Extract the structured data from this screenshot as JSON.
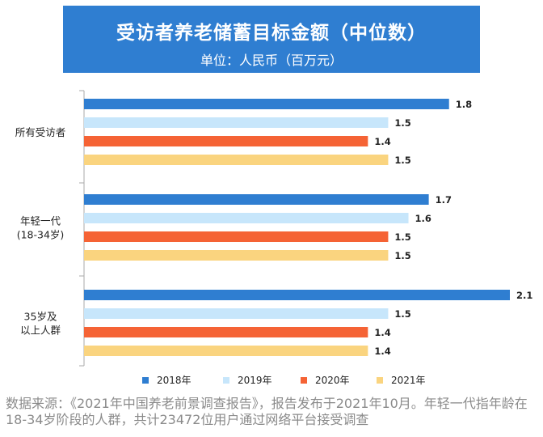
{
  "header": {
    "title": "受访者养老储蓄目标金额（中位数）",
    "subtitle": "单位：人民币（百万元）"
  },
  "chart_data": {
    "type": "bar",
    "orientation": "horizontal",
    "title": "受访者养老储蓄目标金额（中位数）",
    "subtitle": "单位：人民币（百万元）",
    "categories": [
      [
        "所有受访者"
      ],
      [
        "年轻一代",
        "(18-34岁)"
      ],
      [
        "35岁及",
        "以上人群"
      ]
    ],
    "series": [
      {
        "name": "2018年",
        "color": "#2f7ed1",
        "values": [
          1.8,
          1.7,
          2.1
        ]
      },
      {
        "name": "2019年",
        "color": "#c7e6fb",
        "values": [
          1.5,
          1.6,
          1.5
        ]
      },
      {
        "name": "2020年",
        "color": "#f56335",
        "values": [
          1.4,
          1.5,
          1.4
        ]
      },
      {
        "name": "2021年",
        "color": "#fad47f",
        "values": [
          1.5,
          1.5,
          1.4
        ]
      }
    ],
    "value_labels": [
      [
        "1.8",
        "1.5",
        "1.4",
        "1.5"
      ],
      [
        "1.7",
        "1.6",
        "1.5",
        "1.5"
      ],
      [
        "2.1",
        "1.5",
        "1.4",
        "1.4"
      ]
    ],
    "xlim": [
      0,
      2.1
    ],
    "legend_position": "bottom",
    "grid": false
  },
  "footnote": "数据来源：《2021年中国养老前景调查报告》，报告发布于2021年10月。年轻一代指年龄在18-34岁阶段的人群，共计23472位用户通过网络平台接受调查"
}
